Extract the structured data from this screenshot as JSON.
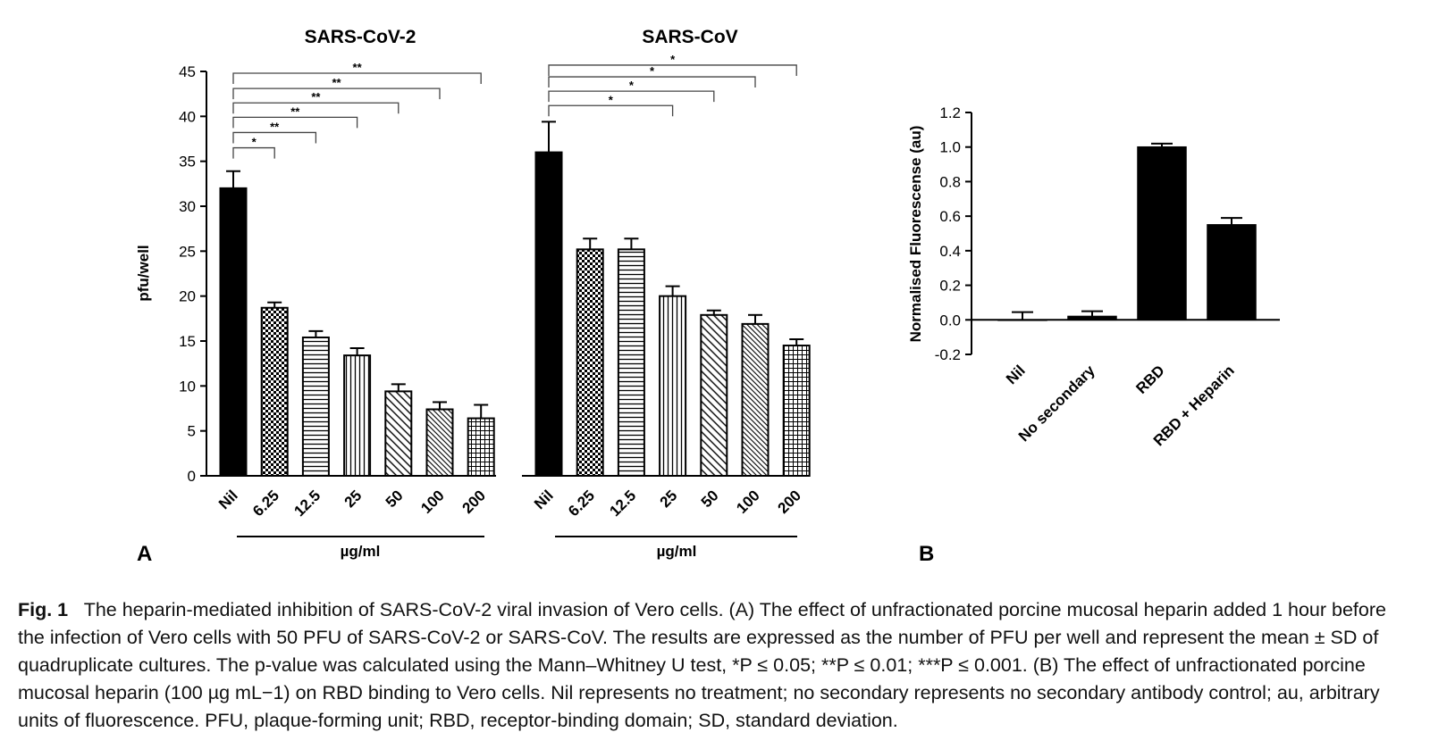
{
  "chart_data": [
    {
      "type": "bar",
      "panel": "A",
      "title": "SARS-CoV-2",
      "ylabel": "pfu/well",
      "unit_label": "µg/ml",
      "ylim": [
        0,
        45
      ],
      "yticks": [
        "0",
        "5",
        "10",
        "15",
        "20",
        "25",
        "30",
        "35",
        "40",
        "45"
      ],
      "categories": [
        "Nil",
        "6.25",
        "12.5",
        "25",
        "50",
        "100",
        "200"
      ],
      "values": [
        32,
        18.7,
        15.4,
        13.4,
        9.4,
        7.4,
        6.4
      ],
      "errors": [
        1.9,
        0.6,
        0.7,
        0.8,
        0.8,
        0.8,
        1.5
      ],
      "significance": [
        {
          "label": "*",
          "from": "Nil",
          "to": "6.25",
          "y": 36.5
        },
        {
          "label": "**",
          "from": "Nil",
          "to": "12.5",
          "y": 38.2
        },
        {
          "label": "**",
          "from": "Nil",
          "to": "25",
          "y": 39.9
        },
        {
          "label": "**",
          "from": "Nil",
          "to": "50",
          "y": 41.5
        },
        {
          "label": "**",
          "from": "Nil",
          "to": "100",
          "y": 43.1
        },
        {
          "label": "**",
          "from": "Nil",
          "to": "200",
          "y": 44.8
        }
      ]
    },
    {
      "type": "bar",
      "panel": "A",
      "title": "SARS-CoV",
      "ylabel": "pfu/well",
      "unit_label": "µg/ml",
      "ylim": [
        0,
        45
      ],
      "categories": [
        "Nil",
        "6.25",
        "12.5",
        "25",
        "50",
        "100",
        "200"
      ],
      "values": [
        36,
        25.2,
        25.2,
        20,
        17.9,
        16.9,
        14.5
      ],
      "errors": [
        3.4,
        1.2,
        1.2,
        1.1,
        0.5,
        1.0,
        0.7
      ],
      "significance": [
        {
          "label": "*",
          "from": "Nil",
          "to": "25",
          "y": 41.2
        },
        {
          "label": "*",
          "from": "Nil",
          "to": "50",
          "y": 42.8
        },
        {
          "label": "*",
          "from": "Nil",
          "to": "100",
          "y": 44.4
        },
        {
          "label": "*",
          "from": "Nil",
          "to": "200",
          "y": 45.7
        }
      ]
    },
    {
      "type": "bar",
      "panel": "B",
      "ylabel": "Normalised Fluorescense (au)",
      "ylim": [
        -0.2,
        1.2
      ],
      "yticks": [
        "-0.2",
        "0.0",
        "0.2",
        "0.4",
        "0.6",
        "0.8",
        "1.0",
        "1.2"
      ],
      "categories": [
        "Nil",
        "No secondary",
        "RBD",
        "RBD + Heparin"
      ],
      "values": [
        0.0,
        0.02,
        1.0,
        0.55
      ],
      "errors": [
        0.045,
        0.03,
        0.02,
        0.04
      ]
    }
  ],
  "panel_labels": {
    "a": "A",
    "b": "B"
  },
  "caption": {
    "lead": "Fig. 1",
    "text": "The heparin-mediated inhibition of SARS-CoV-2 viral invasion of Vero cells. (A) The effect of unfractionated porcine mucosal heparin added 1 hour before the infection of Vero cells with 50 PFU of SARS-CoV-2 or SARS-CoV. The results are expressed as the number of PFU per well and represent the mean ± SD of quadruplicate cultures. The p-value was calculated using the Mann–Whitney U test, *P ≤ 0.05; **P ≤ 0.01; ***P ≤ 0.001. (B) The effect of unfractionated porcine mucosal heparin (100 µg mL−1) on RBD binding to Vero cells. Nil represents no treatment; no secondary represents no secondary antibody control; au, arbitrary units of fluorescence. PFU, plaque-forming unit; RBD, receptor-binding domain; SD, standard deviation."
  }
}
